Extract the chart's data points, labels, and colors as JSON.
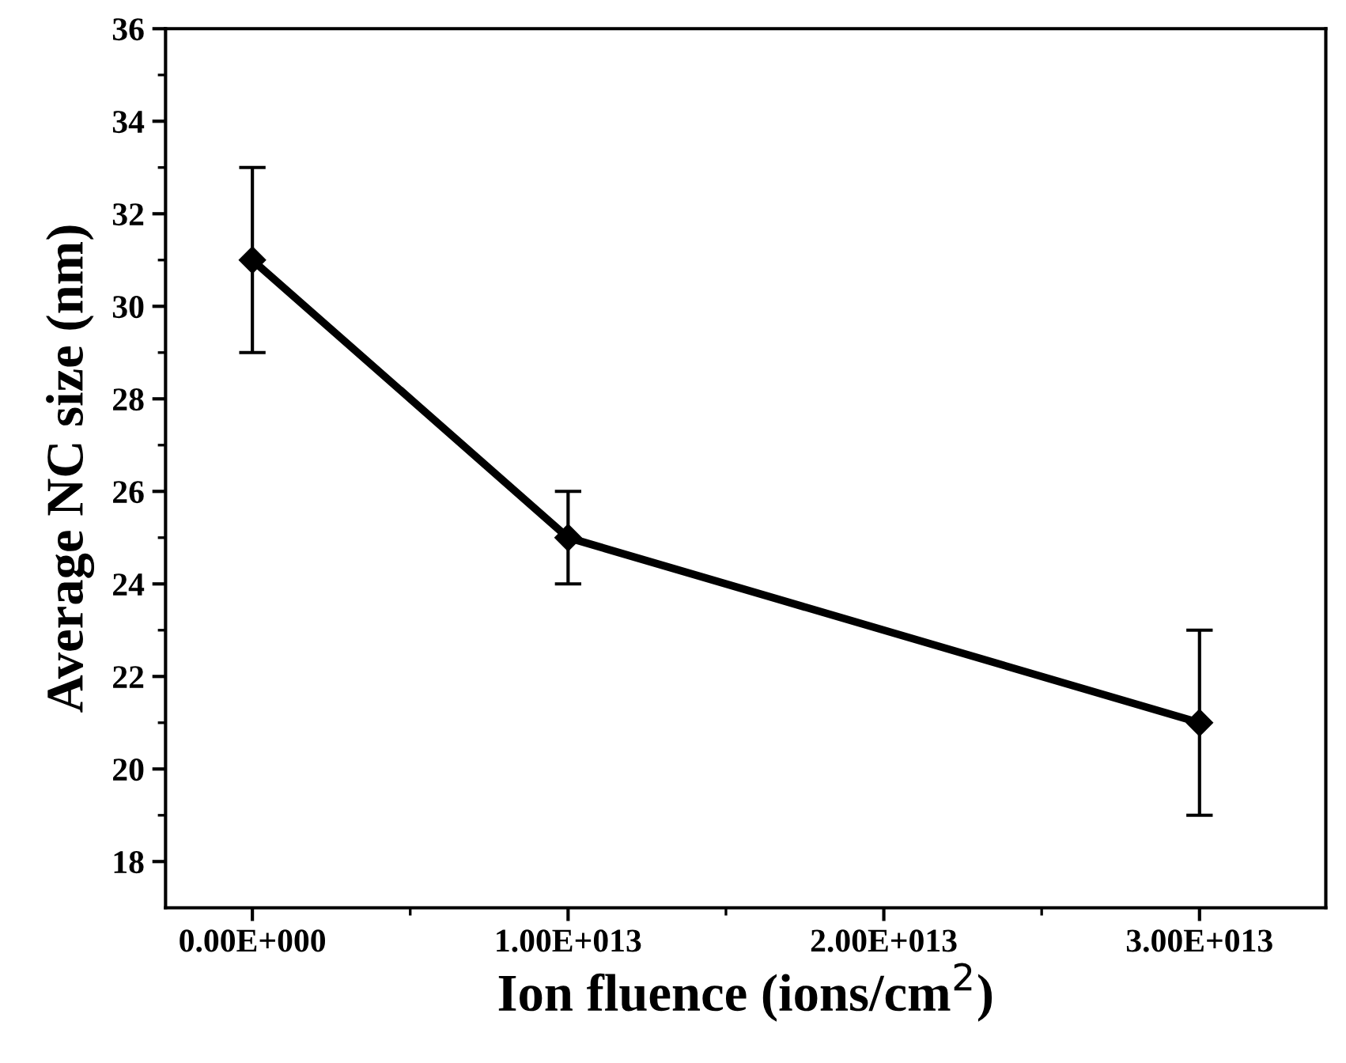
{
  "chart_data": {
    "type": "line",
    "xlabel": "Ion fluence (ions/cm$^{2}$)",
    "ylabel": "Average NC size (nm)",
    "x": [
      0,
      10000000000000.0,
      30000000000000.0
    ],
    "series": [
      {
        "color": "#000000",
        "values": [
          31,
          25,
          21
        ],
        "errors": [
          2,
          1,
          2
        ]
      }
    ],
    "xlim": [
      -2750000000000.0,
      34000000000000.0
    ],
    "xticks": [
      {
        "value": 0,
        "label": "0.00E+000"
      },
      {
        "value": 10000000000000.0,
        "label": "1.00E+013"
      },
      {
        "value": 20000000000000.0,
        "label": "2.00E+013"
      },
      {
        "value": 30000000000000.0,
        "label": "3.00E+013"
      }
    ],
    "ylim": [
      17,
      36
    ],
    "yticks": [
      18,
      20,
      22,
      24,
      26,
      28,
      30,
      32,
      34,
      36
    ],
    "marker": "diamond",
    "line_style": "solid",
    "grid": false,
    "legend": false
  }
}
